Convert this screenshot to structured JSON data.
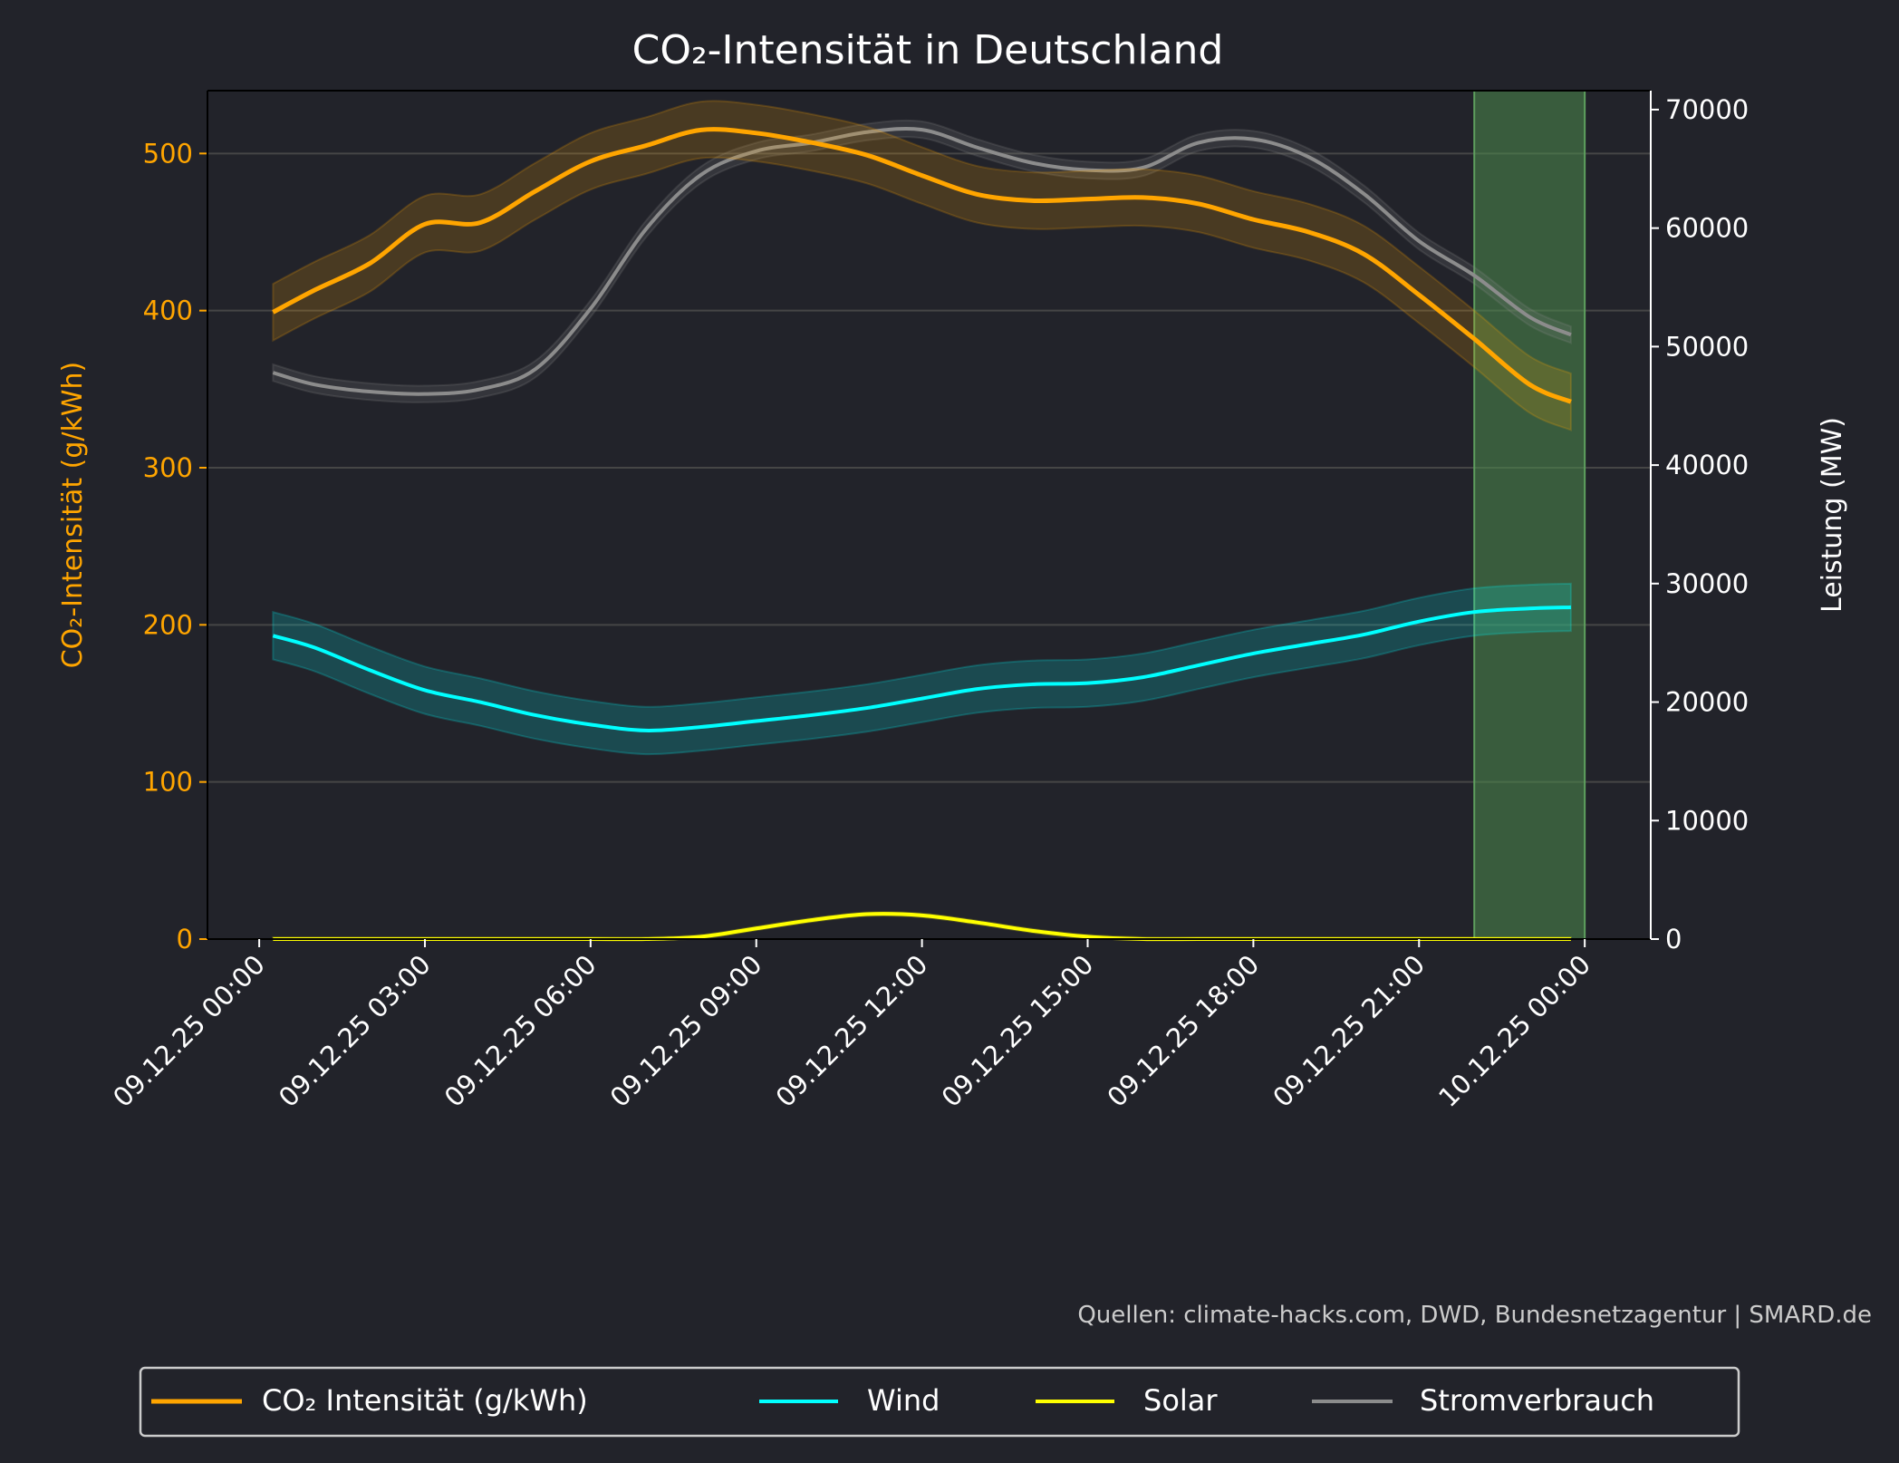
{
  "chart_data": {
    "type": "line",
    "title": "CO₂-Intensität in Deutschland",
    "ylabel_left": "CO₂-Intensität (g/kWh)",
    "ylabel_right": "Leistung (MW)",
    "ylim_left": [
      0,
      540
    ],
    "ylim_right": [
      0,
      71600
    ],
    "yticks_left": [
      0,
      100,
      200,
      300,
      400,
      500
    ],
    "yticks_right": [
      0,
      10000,
      20000,
      30000,
      40000,
      50000,
      60000,
      70000
    ],
    "xticks": [
      "09.12.25 00:00",
      "09.12.25 03:00",
      "09.12.25 06:00",
      "09.12.25 09:00",
      "09.12.25 12:00",
      "09.12.25 15:00",
      "09.12.25 18:00",
      "09.12.25 21:00",
      "10.12.25 00:00"
    ],
    "x_hours": [
      0.25,
      1,
      2,
      3,
      4,
      5,
      6,
      7,
      8,
      9,
      10,
      11,
      12,
      13,
      14,
      15,
      16,
      17,
      18,
      19,
      20,
      21,
      22,
      23,
      23.75
    ],
    "highlight_span_hours": [
      22,
      24
    ],
    "grid": "horizontal",
    "legend_position": "bottom",
    "source": "Quellen: climate-hacks.com, DWD, Bundesnetzagentur | SMARD.de",
    "colors": {
      "background": "#22232a",
      "co2": "#ffa500",
      "wind": "#00ffff",
      "solar": "#ffff00",
      "load": "#8c8c8c",
      "span": "#4c8c4c",
      "grid": "#464646"
    },
    "series": [
      {
        "name": "CO₂ Intensität (g/kWh)",
        "key": "co2",
        "axis": "left",
        "band": 18,
        "values": [
          399,
          413,
          430,
          455,
          456,
          476,
          495,
          505,
          515,
          513,
          507,
          499,
          486,
          474,
          470,
          471,
          472,
          468,
          458,
          450,
          436,
          410,
          382,
          353,
          342
        ]
      },
      {
        "name": "Wind",
        "key": "wind",
        "axis": "right",
        "band": 2000,
        "values": [
          25600,
          24600,
          22700,
          21000,
          20000,
          18900,
          18100,
          17600,
          17900,
          18400,
          18900,
          19500,
          20300,
          21100,
          21500,
          21600,
          22100,
          23100,
          24100,
          24900,
          25700,
          26800,
          27600,
          27900,
          28000
        ]
      },
      {
        "name": "Solar",
        "key": "solar",
        "axis": "right",
        "band": 150,
        "values": [
          0,
          0,
          0,
          0,
          0,
          0,
          0,
          0,
          200,
          900,
          1600,
          2100,
          2000,
          1400,
          700,
          200,
          0,
          0,
          0,
          0,
          0,
          0,
          0,
          0,
          0
        ]
      },
      {
        "name": "Stromverbrauch",
        "key": "load",
        "axis": "right",
        "band": 700,
        "values": [
          47800,
          46800,
          46200,
          46000,
          46400,
          48100,
          53200,
          59900,
          64500,
          66500,
          67200,
          68100,
          68300,
          66800,
          65500,
          64900,
          65100,
          67200,
          67500,
          66000,
          62900,
          58900,
          56000,
          52500,
          51000
        ]
      }
    ]
  }
}
